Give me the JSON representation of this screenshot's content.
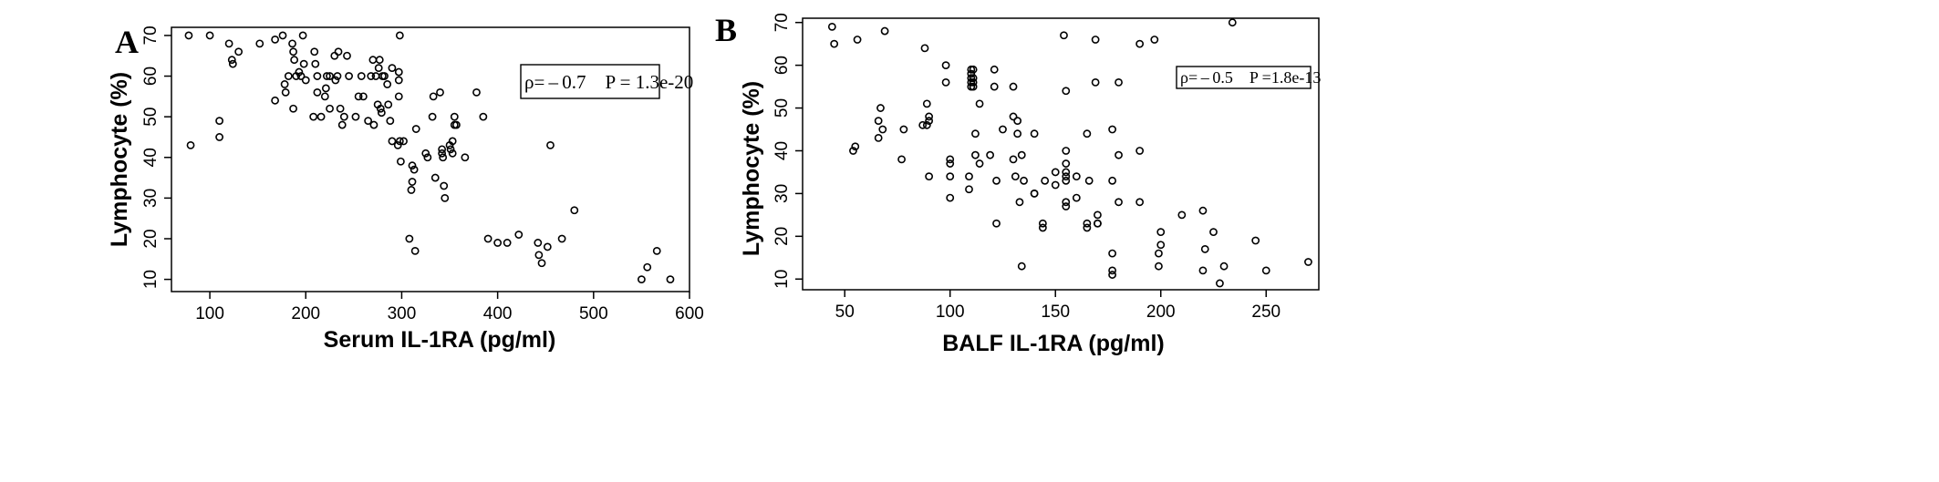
{
  "chart_data": [
    {
      "type": "scatter",
      "panel_label": "A",
      "xlabel": "Serum IL-1RA (pg/ml)",
      "ylabel": "Lymphocyte (%)",
      "xlim": [
        60,
        600
      ],
      "ylim": [
        7,
        72
      ],
      "x_ticks": [
        100,
        200,
        300,
        400,
        500,
        600
      ],
      "y_ticks": [
        10,
        20,
        30,
        40,
        50,
        60,
        70
      ],
      "annotation": "ρ= – 0.7 P = 1.3e-20",
      "points": [
        [
          78,
          70
        ],
        [
          80,
          43
        ],
        [
          100,
          70
        ],
        [
          110,
          49
        ],
        [
          110,
          45
        ],
        [
          120,
          68
        ],
        [
          123,
          64
        ],
        [
          124,
          63
        ],
        [
          130,
          66
        ],
        [
          152,
          68
        ],
        [
          168,
          54
        ],
        [
          168,
          69
        ],
        [
          176,
          70
        ],
        [
          178,
          58
        ],
        [
          179,
          56
        ],
        [
          182,
          60
        ],
        [
          186,
          68
        ],
        [
          187,
          66
        ],
        [
          187,
          52
        ],
        [
          188,
          64
        ],
        [
          190,
          60
        ],
        [
          193,
          61
        ],
        [
          195,
          60
        ],
        [
          197,
          70
        ],
        [
          198,
          63
        ],
        [
          200,
          59
        ],
        [
          208,
          50
        ],
        [
          209,
          66
        ],
        [
          210,
          63
        ],
        [
          212,
          60
        ],
        [
          212,
          56
        ],
        [
          216,
          50
        ],
        [
          220,
          55
        ],
        [
          221,
          57
        ],
        [
          222,
          60
        ],
        [
          225,
          60
        ],
        [
          225,
          52
        ],
        [
          230,
          65
        ],
        [
          231,
          59
        ],
        [
          233,
          60
        ],
        [
          234,
          66
        ],
        [
          236,
          52
        ],
        [
          238,
          48
        ],
        [
          240,
          50
        ],
        [
          243,
          65
        ],
        [
          245,
          60
        ],
        [
          252,
          50
        ],
        [
          255,
          55
        ],
        [
          258,
          60
        ],
        [
          260,
          55
        ],
        [
          265,
          49
        ],
        [
          268,
          60
        ],
        [
          270,
          64
        ],
        [
          271,
          48
        ],
        [
          273,
          60
        ],
        [
          275,
          53
        ],
        [
          276,
          62
        ],
        [
          277,
          64
        ],
        [
          278,
          52
        ],
        [
          279,
          51
        ],
        [
          280,
          60
        ],
        [
          282,
          60
        ],
        [
          285,
          58
        ],
        [
          286,
          53
        ],
        [
          288,
          49
        ],
        [
          290,
          44
        ],
        [
          290,
          62
        ],
        [
          298,
          70
        ],
        [
          297,
          61
        ],
        [
          297,
          59
        ],
        [
          297,
          55
        ],
        [
          296,
          43
        ],
        [
          298,
          44
        ],
        [
          299,
          39
        ],
        [
          302,
          44
        ],
        [
          308,
          20
        ],
        [
          310,
          32
        ],
        [
          311,
          34
        ],
        [
          311,
          38
        ],
        [
          313,
          37
        ],
        [
          314,
          17
        ],
        [
          315,
          47
        ],
        [
          325,
          41
        ],
        [
          327,
          40
        ],
        [
          332,
          50
        ],
        [
          333,
          55
        ],
        [
          335,
          35
        ],
        [
          340,
          56
        ],
        [
          342,
          42
        ],
        [
          342,
          41
        ],
        [
          343,
          40
        ],
        [
          344,
          33
        ],
        [
          345,
          30
        ],
        [
          350,
          43
        ],
        [
          351,
          42
        ],
        [
          353,
          44
        ],
        [
          353,
          41
        ],
        [
          355,
          50
        ],
        [
          355,
          48
        ],
        [
          357,
          48
        ],
        [
          366,
          40
        ],
        [
          378,
          56
        ],
        [
          385,
          50
        ],
        [
          390,
          20
        ],
        [
          400,
          19
        ],
        [
          410,
          19
        ],
        [
          422,
          21
        ],
        [
          442,
          19
        ],
        [
          443,
          16
        ],
        [
          446,
          14
        ],
        [
          452,
          18
        ],
        [
          455,
          43
        ],
        [
          467,
          20
        ],
        [
          480,
          27
        ],
        [
          550,
          10
        ],
        [
          556,
          13
        ],
        [
          566,
          17
        ],
        [
          580,
          10
        ]
      ]
    },
    {
      "type": "scatter",
      "panel_label": "B",
      "xlabel": "BALF IL-1RA (pg/ml)",
      "ylabel": "Lymphocyte (%)",
      "xlim": [
        30,
        275
      ],
      "ylim": [
        7.5,
        71
      ],
      "x_ticks": [
        50,
        100,
        150,
        200,
        250
      ],
      "y_ticks": [
        10,
        20,
        30,
        40,
        50,
        60,
        70
      ],
      "annotation": "ρ= – 0.5 P =1.8e-13",
      "points": [
        [
          44,
          69
        ],
        [
          45,
          65
        ],
        [
          54,
          40
        ],
        [
          55,
          41
        ],
        [
          56,
          66
        ],
        [
          66,
          43
        ],
        [
          66,
          47
        ],
        [
          67,
          50
        ],
        [
          68,
          45
        ],
        [
          69,
          68
        ],
        [
          77,
          38
        ],
        [
          78,
          45
        ],
        [
          87,
          46
        ],
        [
          88,
          64
        ],
        [
          89,
          51
        ],
        [
          89,
          46
        ],
        [
          90,
          48
        ],
        [
          90,
          47
        ],
        [
          90,
          34
        ],
        [
          98,
          60
        ],
        [
          98,
          56
        ],
        [
          100,
          38
        ],
        [
          100,
          37
        ],
        [
          100,
          34
        ],
        [
          100,
          29
        ],
        [
          109,
          31
        ],
        [
          109,
          34
        ],
        [
          110,
          59
        ],
        [
          110,
          58
        ],
        [
          110,
          57
        ],
        [
          110,
          56
        ],
        [
          110,
          55
        ],
        [
          111,
          59
        ],
        [
          111,
          57
        ],
        [
          111,
          56
        ],
        [
          111,
          55
        ],
        [
          112,
          44
        ],
        [
          112,
          39
        ],
        [
          114,
          51
        ],
        [
          114,
          37
        ],
        [
          119,
          39
        ],
        [
          121,
          59
        ],
        [
          121,
          55
        ],
        [
          122,
          33
        ],
        [
          122,
          23
        ],
        [
          125,
          45
        ],
        [
          130,
          55
        ],
        [
          130,
          48
        ],
        [
          130,
          38
        ],
        [
          131,
          34
        ],
        [
          132,
          47
        ],
        [
          132,
          44
        ],
        [
          133,
          28
        ],
        [
          134,
          39
        ],
        [
          134,
          13
        ],
        [
          135,
          33
        ],
        [
          140,
          44
        ],
        [
          140,
          30
        ],
        [
          140,
          30
        ],
        [
          144,
          23
        ],
        [
          144,
          22
        ],
        [
          145,
          33
        ],
        [
          150,
          35
        ],
        [
          150,
          32
        ],
        [
          154,
          67
        ],
        [
          155,
          54
        ],
        [
          155,
          40
        ],
        [
          155,
          37
        ],
        [
          155,
          35
        ],
        [
          155,
          34
        ],
        [
          155,
          33
        ],
        [
          155,
          28
        ],
        [
          155,
          27
        ],
        [
          160,
          34
        ],
        [
          160,
          29
        ],
        [
          165,
          23
        ],
        [
          165,
          22
        ],
        [
          165,
          44
        ],
        [
          166,
          33
        ],
        [
          169,
          66
        ],
        [
          169,
          56
        ],
        [
          170,
          25
        ],
        [
          170,
          23
        ],
        [
          170,
          23
        ],
        [
          177,
          45
        ],
        [
          177,
          33
        ],
        [
          177,
          16
        ],
        [
          177,
          12
        ],
        [
          177,
          11
        ],
        [
          180,
          56
        ],
        [
          180,
          39
        ],
        [
          180,
          28
        ],
        [
          190,
          65
        ],
        [
          190,
          40
        ],
        [
          190,
          28
        ],
        [
          197,
          66
        ],
        [
          199,
          16
        ],
        [
          199,
          13
        ],
        [
          200,
          21
        ],
        [
          200,
          18
        ],
        [
          210,
          25
        ],
        [
          220,
          26
        ],
        [
          220,
          12
        ],
        [
          221,
          17
        ],
        [
          225,
          21
        ],
        [
          228,
          9
        ],
        [
          230,
          13
        ],
        [
          234,
          70
        ],
        [
          245,
          19
        ],
        [
          250,
          12
        ],
        [
          270,
          14
        ]
      ]
    }
  ]
}
